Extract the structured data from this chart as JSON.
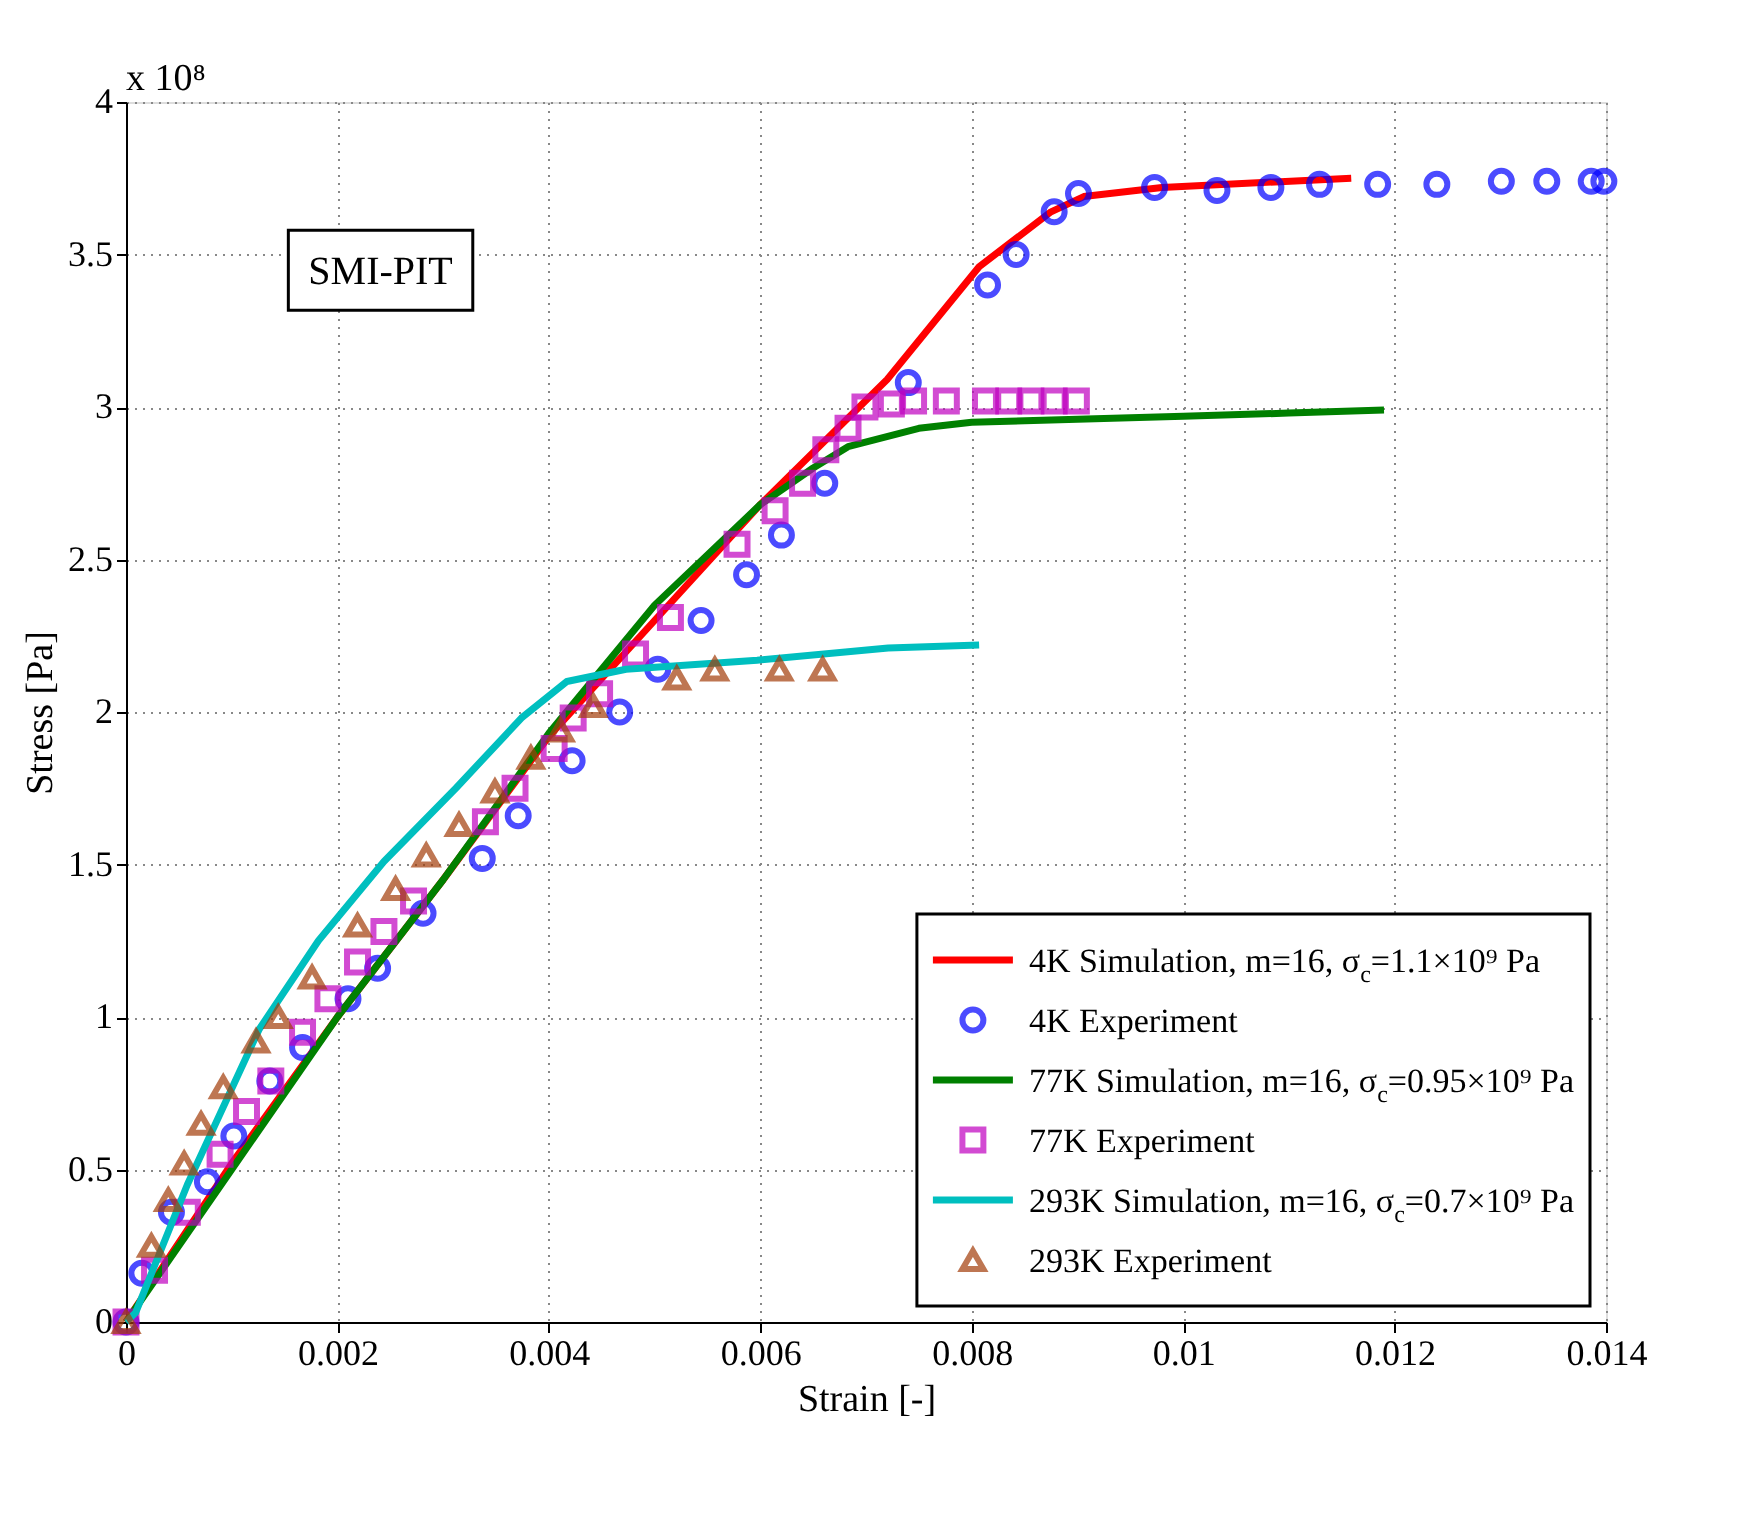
{
  "chart_data": {
    "type": "line",
    "xlabel": "Strain [-]",
    "ylabel": "Stress [Pa]",
    "annotations": [
      "x 10⁸",
      "SMI-PIT"
    ],
    "xlim": [
      0,
      0.014
    ],
    "xticks": [
      0,
      0.002,
      0.004,
      0.006,
      0.008,
      0.01,
      0.012,
      0.014
    ],
    "ylim": [
      0,
      4
    ],
    "yticks": [
      0,
      0.5,
      1,
      1.5,
      2,
      2.5,
      3,
      3.5,
      4
    ],
    "grid": true,
    "legend": "bottom right",
    "series": [
      {
        "name": "4K Simulation, m=16, σ$_{c}$=1.1×10⁹ Pa",
        "type": "line",
        "marker": "none",
        "color": "#ff0000",
        "x": [
          0,
          0.001,
          0.002,
          0.003,
          0.004,
          0.005,
          0.006,
          0.0072,
          0.00807,
          0.00875,
          0.00906,
          0.0098,
          0.01159
        ],
        "values": [
          0,
          0.52,
          1.0,
          1.45,
          1.92,
          2.3,
          2.68,
          3.09,
          3.46,
          3.64,
          3.69,
          3.72,
          3.75
        ]
      },
      {
        "name": "4K Experiment",
        "type": "scatter",
        "marker": "circle",
        "color": "#0000ff",
        "x": [
          0,
          0.00015,
          0.00043,
          0.00077,
          0.00102,
          0.00136,
          0.00167,
          0.0021,
          0.00238,
          0.00281,
          0.00337,
          0.00371,
          0.00422,
          0.00467,
          0.00503,
          0.00544,
          0.00587,
          0.0062,
          0.00661,
          0.0074,
          0.00815,
          0.00842,
          0.00878,
          0.00901,
          0.00973,
          0.01032,
          0.01083,
          0.01129,
          0.01184,
          0.0124,
          0.01301,
          0.01344,
          0.01386,
          0.01398
        ],
        "values": [
          0,
          0.16,
          0.36,
          0.46,
          0.61,
          0.79,
          0.9,
          1.06,
          1.16,
          1.34,
          1.52,
          1.66,
          1.84,
          2.0,
          2.14,
          2.3,
          2.45,
          2.58,
          2.75,
          3.08,
          3.4,
          3.5,
          3.64,
          3.7,
          3.72,
          3.71,
          3.72,
          3.73,
          3.73,
          3.73,
          3.74,
          3.74,
          3.74,
          3.74
        ]
      },
      {
        "name": "77K Simulation, m=16, σ$_{c}$=0.95×10⁹ Pa",
        "type": "line",
        "marker": "none",
        "color": "#008000",
        "x": [
          0,
          0.001,
          0.002,
          0.003,
          0.004,
          0.005,
          0.006,
          0.0065,
          0.00683,
          0.0075,
          0.008,
          0.009,
          0.01,
          0.011,
          0.0119
        ],
        "values": [
          0,
          0.5,
          1.0,
          1.45,
          1.93,
          2.35,
          2.68,
          2.8,
          2.87,
          2.93,
          2.95,
          2.96,
          2.97,
          2.98,
          2.99
        ]
      },
      {
        "name": "77K Experiment",
        "type": "scatter",
        "marker": "square",
        "color": "#bf00bf",
        "x": [
          0,
          0.00027,
          0.00058,
          0.00089,
          0.00114,
          0.00137,
          0.00167,
          0.00191,
          0.00219,
          0.00244,
          0.00272,
          0.0034,
          0.00368,
          0.00405,
          0.00423,
          0.00448,
          0.00482,
          0.00515,
          0.00578,
          0.00614,
          0.0064,
          0.00662,
          0.00683,
          0.00699,
          0.00724,
          0.00745,
          0.00776,
          0.00813,
          0.00835,
          0.00856,
          0.00878,
          0.00899
        ],
        "values": [
          0,
          0.17,
          0.36,
          0.55,
          0.69,
          0.79,
          0.95,
          1.06,
          1.18,
          1.28,
          1.38,
          1.64,
          1.75,
          1.88,
          1.98,
          2.06,
          2.19,
          2.31,
          2.55,
          2.66,
          2.75,
          2.86,
          2.93,
          3.0,
          3.01,
          3.02,
          3.02,
          3.02,
          3.02,
          3.02,
          3.02,
          3.02
        ]
      },
      {
        "name": "293K Simulation, m=16, σ$_{c}$=0.7×10⁹ Pa",
        "type": "line",
        "marker": "none",
        "color": "#00bfbf",
        "x": [
          0,
          9e-05,
          0.00058,
          0.00126,
          0.00182,
          0.00244,
          0.00312,
          0.00374,
          0.00417,
          0.00473,
          0.00597,
          0.00721,
          0.00807
        ],
        "values": [
          0,
          0.03,
          0.45,
          0.96,
          1.25,
          1.51,
          1.75,
          1.98,
          2.1,
          2.14,
          2.17,
          2.21,
          2.22
        ]
      },
      {
        "name": "293K Experiment",
        "type": "scatter",
        "marker": "triangle",
        "color": "#a33d0a",
        "x": [
          0,
          0.00024,
          0.0004,
          0.00055,
          0.00071,
          0.00092,
          0.00123,
          0.00144,
          0.00176,
          0.00219,
          0.00255,
          0.00284,
          0.00315,
          0.00349,
          0.00383,
          0.00411,
          0.00442,
          0.00521,
          0.00557,
          0.00618,
          0.00659
        ],
        "values": [
          0,
          0.25,
          0.4,
          0.52,
          0.65,
          0.77,
          0.92,
          1.0,
          1.13,
          1.3,
          1.42,
          1.53,
          1.63,
          1.74,
          1.85,
          1.94,
          2.02,
          2.11,
          2.14,
          2.14,
          2.14
        ]
      }
    ]
  }
}
